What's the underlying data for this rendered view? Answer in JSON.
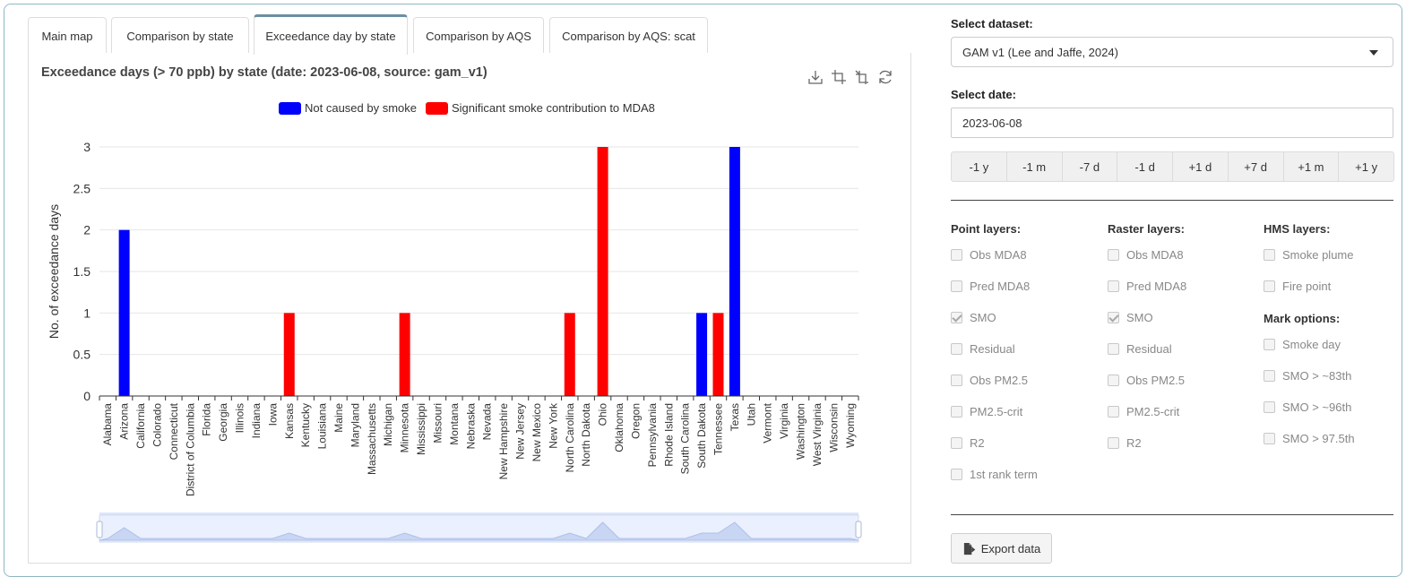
{
  "tabs": [
    {
      "label": "Main map",
      "active": false
    },
    {
      "label": "Comparison by state",
      "active": false
    },
    {
      "label": "Exceedance day by state",
      "active": true
    },
    {
      "label": "Comparison by AQS",
      "active": false
    },
    {
      "label": "Comparison by AQS: scat",
      "active": false
    }
  ],
  "chart": {
    "title": "Exceedance days (> 70 ppb) by state (date: 2023-06-08, source: gam_v1)",
    "toolbox_icons": [
      "download-icon",
      "zoom-icon",
      "zoom-reset-icon",
      "restore-icon"
    ]
  },
  "chart_data": {
    "type": "bar",
    "title": "Exceedance days (> 70 ppb) by state (date: 2023-06-08, source: gam_v1)",
    "xlabel": "",
    "ylabel": "No. of exceedance days",
    "ylim": [
      0,
      3
    ],
    "yticks": [
      "0",
      "0.5",
      "1",
      "1.5",
      "2",
      "2.5",
      "3"
    ],
    "grid": true,
    "legend_position": "top-center",
    "categories": [
      "Alabama",
      "Arizona",
      "California",
      "Colorado",
      "Connecticut",
      "District of Columbia",
      "Florida",
      "Georgia",
      "Illinois",
      "Indiana",
      "Iowa",
      "Kansas",
      "Kentucky",
      "Louisiana",
      "Maine",
      "Maryland",
      "Massachusetts",
      "Michigan",
      "Minnesota",
      "Mississippi",
      "Missouri",
      "Montana",
      "Nebraska",
      "Nevada",
      "New Hampshire",
      "New Jersey",
      "New Mexico",
      "New York",
      "North Carolina",
      "North Dakota",
      "Ohio",
      "Oklahoma",
      "Oregon",
      "Pennsylvania",
      "Rhode Island",
      "South Carolina",
      "South Dakota",
      "Tennessee",
      "Texas",
      "Utah",
      "Vermont",
      "Virginia",
      "Washington",
      "West Virginia",
      "Wisconsin",
      "Wyoming"
    ],
    "series": [
      {
        "name": "Not caused by smoke",
        "color": "#0000ff",
        "values": [
          0,
          2,
          0,
          0,
          0,
          0,
          0,
          0,
          0,
          0,
          0,
          0,
          0,
          0,
          0,
          0,
          0,
          0,
          0,
          0,
          0,
          0,
          0,
          0,
          0,
          0,
          0,
          0,
          0,
          0,
          0,
          0,
          0,
          0,
          0,
          0,
          1,
          0,
          3,
          0,
          0,
          0,
          0,
          0,
          0,
          0
        ]
      },
      {
        "name": "Significant smoke contribution to MDA8",
        "color": "#ff0000",
        "values": [
          0,
          0,
          0,
          0,
          0,
          0,
          0,
          0,
          0,
          0,
          0,
          1,
          0,
          0,
          0,
          0,
          0,
          0,
          1,
          0,
          0,
          0,
          0,
          0,
          0,
          0,
          0,
          0,
          1,
          0,
          3,
          0,
          0,
          0,
          0,
          0,
          0,
          1,
          0,
          0,
          0,
          0,
          0,
          0,
          0,
          0
        ]
      }
    ]
  },
  "sidebar": {
    "dataset_label": "Select dataset:",
    "dataset_value": "GAM v1 (Lee and Jaffe, 2024)",
    "date_label": "Select date:",
    "date_value": "2023-06-08",
    "step_buttons": [
      "-1 y",
      "-1 m",
      "-7 d",
      "-1 d",
      "+1 d",
      "+7 d",
      "+1 m",
      "+1 y"
    ],
    "point_layers": {
      "heading": "Point layers:",
      "items": [
        {
          "label": "Obs MDA8",
          "checked": false
        },
        {
          "label": "Pred MDA8",
          "checked": false
        },
        {
          "label": "SMO",
          "checked": true
        },
        {
          "label": "Residual",
          "checked": false
        },
        {
          "label": "Obs PM2.5",
          "checked": false
        },
        {
          "label": "PM2.5-crit",
          "checked": false
        },
        {
          "label": "R2",
          "checked": false
        },
        {
          "label": "1st rank term",
          "checked": false
        }
      ]
    },
    "raster_layers": {
      "heading": "Raster layers:",
      "items": [
        {
          "label": "Obs MDA8",
          "checked": false
        },
        {
          "label": "Pred MDA8",
          "checked": false
        },
        {
          "label": "SMO",
          "checked": true
        },
        {
          "label": "Residual",
          "checked": false
        },
        {
          "label": "Obs PM2.5",
          "checked": false
        },
        {
          "label": "PM2.5-crit",
          "checked": false
        },
        {
          "label": "R2",
          "checked": false
        }
      ]
    },
    "hms_layers": {
      "heading": "HMS layers:",
      "items": [
        {
          "label": "Smoke plume",
          "checked": false
        },
        {
          "label": "Fire point",
          "checked": false
        }
      ]
    },
    "mark_options": {
      "heading": "Mark options:",
      "items": [
        {
          "label": "Smoke day",
          "checked": false
        },
        {
          "label": "SMO > ~83th",
          "checked": false
        },
        {
          "label": "SMO > ~96th",
          "checked": false
        },
        {
          "label": "SMO > 97.5th",
          "checked": false
        }
      ]
    },
    "export_label": "Export data"
  }
}
